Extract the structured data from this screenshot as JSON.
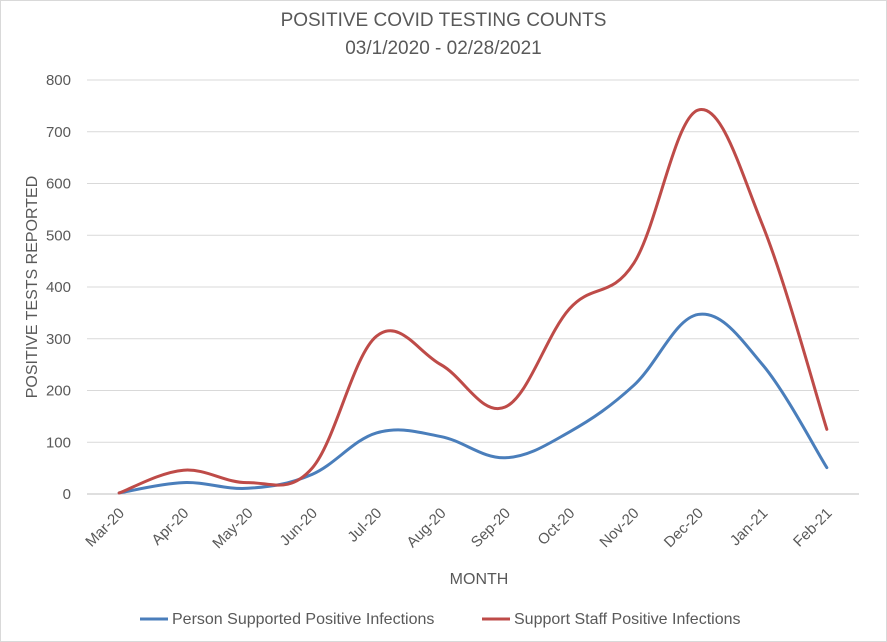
{
  "chart_data": {
    "type": "line",
    "title": "POSITIVE COVID TESTING COUNTS",
    "subtitle": "03/1/2020 - 02/28/2021",
    "xlabel": "MONTH",
    "ylabel": "POSITIVE TESTS REPORTED",
    "ylim": [
      0,
      800
    ],
    "yticks": [
      0,
      100,
      200,
      300,
      400,
      500,
      600,
      700,
      800
    ],
    "grid": true,
    "legend_position": "bottom",
    "categories": [
      "Mar-20",
      "Apr-20",
      "May-20",
      "Jun-20",
      "Jul-20",
      "Aug-20",
      "Sep-20",
      "Oct-20",
      "Nov-20",
      "Dec-20",
      "Jan-21",
      "Feb-21"
    ],
    "series": [
      {
        "name": "Person Supported Positive Infections",
        "color": "#4a7ebb",
        "values": [
          2,
          22,
          11,
          38,
          118,
          111,
          70,
          120,
          210,
          347,
          250,
          51
        ]
      },
      {
        "name": "Support Staff Positive Infections",
        "color": "#be4b48",
        "values": [
          2,
          46,
          22,
          50,
          305,
          250,
          168,
          358,
          446,
          742,
          520,
          125
        ]
      }
    ]
  }
}
